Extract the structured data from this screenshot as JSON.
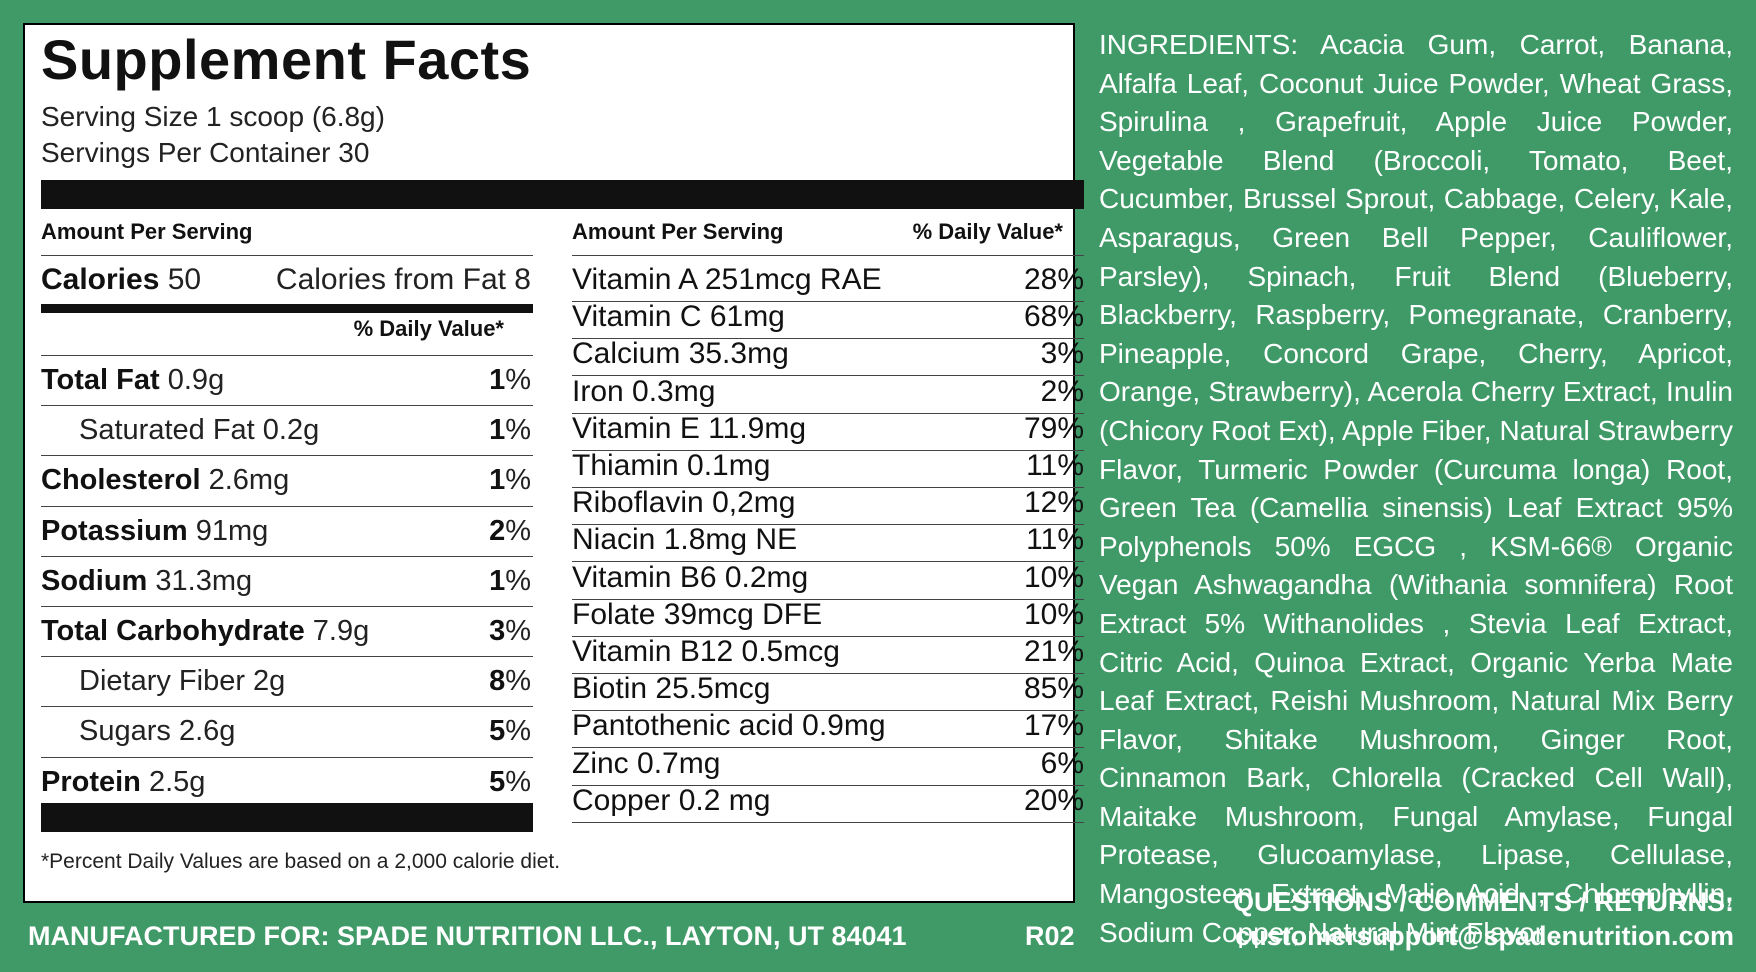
{
  "facts": {
    "title": "Supplement Facts",
    "serving_size": "Serving Size 1 scoop (6.8g)",
    "servings_per_container": "Servings Per Container 30",
    "amount_per_serving": "Amount Per Serving",
    "daily_value_header": "% Daily Value*",
    "calories_label": "Calories",
    "calories_value": "50",
    "calories_from_fat": "Calories from Fat 8",
    "left_rows": [
      {
        "label": "Total Fat",
        "amount": "0.9g",
        "pct_num": "1",
        "pct_sign": "%",
        "bold": true
      },
      {
        "label": "Saturated Fat 0.2g",
        "amount": "",
        "pct_num": "1",
        "pct_sign": "%",
        "bold": false
      },
      {
        "label": "Cholesterol",
        "amount": "2.6mg",
        "pct_num": "1",
        "pct_sign": "%",
        "bold": true
      },
      {
        "label": "Potassium",
        "amount": "91mg",
        "pct_num": "2",
        "pct_sign": "%",
        "bold": true
      },
      {
        "label": "Sodium",
        "amount": "31.3mg",
        "pct_num": "1",
        "pct_sign": "%",
        "bold": true
      },
      {
        "label": "Total Carbohydrate",
        "amount": "7.9g",
        "pct_num": "3",
        "pct_sign": "%",
        "bold": true
      },
      {
        "label": "Dietary Fiber 2g",
        "amount": "",
        "pct_num": "8",
        "pct_sign": "%",
        "bold": false
      },
      {
        "label": "Sugars 2.6g",
        "amount": "",
        "pct_num": "5",
        "pct_sign": "%",
        "bold": false
      },
      {
        "label": "Protein",
        "amount": "2.5g",
        "pct_num": "5",
        "pct_sign": "%",
        "bold": true
      }
    ],
    "right_rows": [
      {
        "label": "Vitamin A 251mcg RAE",
        "pct": "28%"
      },
      {
        "label": "Vitamin C 61mg",
        "pct": "68%"
      },
      {
        "label": "Calcium 35.3mg",
        "pct": "3%"
      },
      {
        "label": "Iron 0.3mg",
        "pct": "2%"
      },
      {
        "label": "Vitamin E 11.9mg",
        "pct": "79%"
      },
      {
        "label": "Thiamin 0.1mg",
        "pct": "11%"
      },
      {
        "label": "Riboflavin 0,2mg",
        "pct": "12%"
      },
      {
        "label": "Niacin 1.8mg NE",
        "pct": "11%"
      },
      {
        "label": "Vitamin B6 0.2mg",
        "pct": "10%"
      },
      {
        "label": "Folate 39mcg DFE",
        "pct": "10%"
      },
      {
        "label": "Vitamin B12 0.5mcg",
        "pct": "21%"
      },
      {
        "label": "Biotin 25.5mcg",
        "pct": "85%"
      },
      {
        "label": "Pantothenic acid 0.9mg",
        "pct": "17%"
      },
      {
        "label": "Zinc 0.7mg",
        "pct": "6%"
      },
      {
        "label": "Copper 0.2 mg",
        "pct": "20%"
      }
    ],
    "footnote": "*Percent Daily Values are based on a 2,000 calorie diet."
  },
  "ingredients": "INGREDIENTS: Acacia Gum, Carrot, Banana, Alfalfa Leaf, Coconut Juice Powder, Wheat Grass, Spirulina , Grapefruit, Apple Juice Powder, Vegetable Blend (Broccoli, Tomato, Beet, Cucumber, Brussel Sprout, Cabbage, Celery, Kale, Asparagus, Green Bell Pepper, Cauliflower, Parsley), Spinach, Fruit Blend (Blueberry, Blackberry, Raspberry, Pomegranate, Cranberry, Pineapple, Concord Grape, Cherry, Apricot, Orange, Strawberry), Acerola Cherry Extract, Inulin (Chicory Root Ext), Apple Fiber, Natural Strawberry Flavor, Turmeric Powder (Curcuma longa) Root, Green Tea (Camellia sinensis) Leaf Extract 95% Polyphenols 50% EGCG , KSM-66® Organic Vegan Ashwagandha (Withania somnifera) Root Extract 5% Withanolides , Stevia Leaf Extract, Citric Acid, Quinoa Extract, Organic Yerba Mate Leaf Extract, Reishi Mushroom, Natural Mix Berry Flavor, Shitake Mushroom, Ginger Root, Cinnamon Bark, Chlorella (Cracked Cell Wall), Maitake Mushroom, Fungal Amylase, Fungal Protease, Glucoamylase, Lipase, Cellulase, Mangosteen Extract, Malic Acid , Chlorophyllin, Sodium Copper, Natural Mint Flavor .",
  "footer": {
    "manufactured": "MANUFACTURED FOR: SPADE NUTRITION LLC., LAYTON, UT 84041",
    "code": "R02",
    "questions": "QUESTIONS / COMMENTS / RETURNS:",
    "email": "customersupport@spadenutrition.com"
  },
  "colors": {
    "background": "#3f9a67",
    "panel": "#ffffff",
    "text": "#111111"
  }
}
